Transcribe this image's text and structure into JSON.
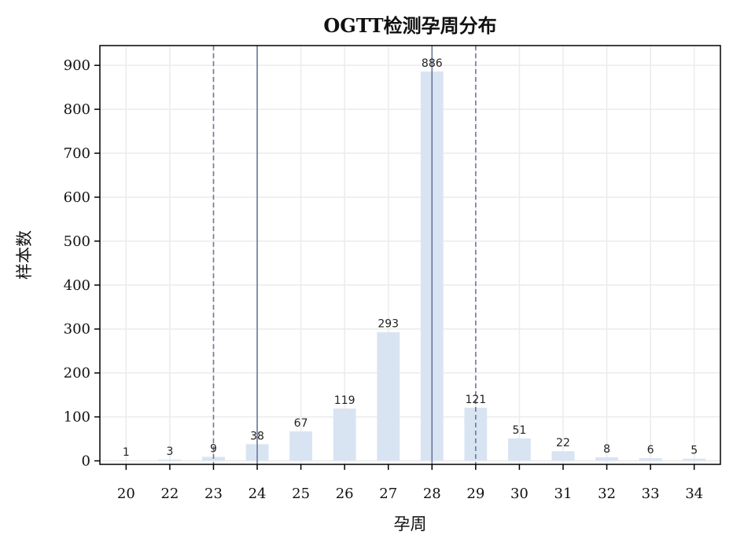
{
  "chart_data": {
    "type": "bar",
    "title": "OGTT检测孕周分布",
    "xlabel": "孕周",
    "ylabel": "样本数",
    "categories": [
      "20",
      "22",
      "23",
      "24",
      "25",
      "26",
      "27",
      "28",
      "29",
      "30",
      "31",
      "32",
      "33",
      "34"
    ],
    "values": [
      1,
      3,
      9,
      38,
      67,
      119,
      293,
      886,
      121,
      51,
      22,
      8,
      6,
      5
    ],
    "data_labels": [
      "1",
      "3",
      "9",
      "38",
      "67",
      "119",
      "293",
      "886",
      "121",
      "51",
      "22",
      "8",
      "6",
      "5"
    ],
    "ylim": [
      -8,
      945
    ],
    "yticks": [
      0,
      100,
      200,
      300,
      400,
      500,
      600,
      700,
      800,
      900
    ],
    "grid": true,
    "reference_lines": [
      {
        "category": "23",
        "style": "dashed"
      },
      {
        "category": "24",
        "style": "solid"
      },
      {
        "category": "28",
        "style": "solid"
      },
      {
        "category": "29",
        "style": "dashed"
      }
    ],
    "colors": {
      "bar": "#d9e4f3",
      "grid": "#ebebeb",
      "reference_line": "#6b7899",
      "axis": "#000000"
    }
  }
}
